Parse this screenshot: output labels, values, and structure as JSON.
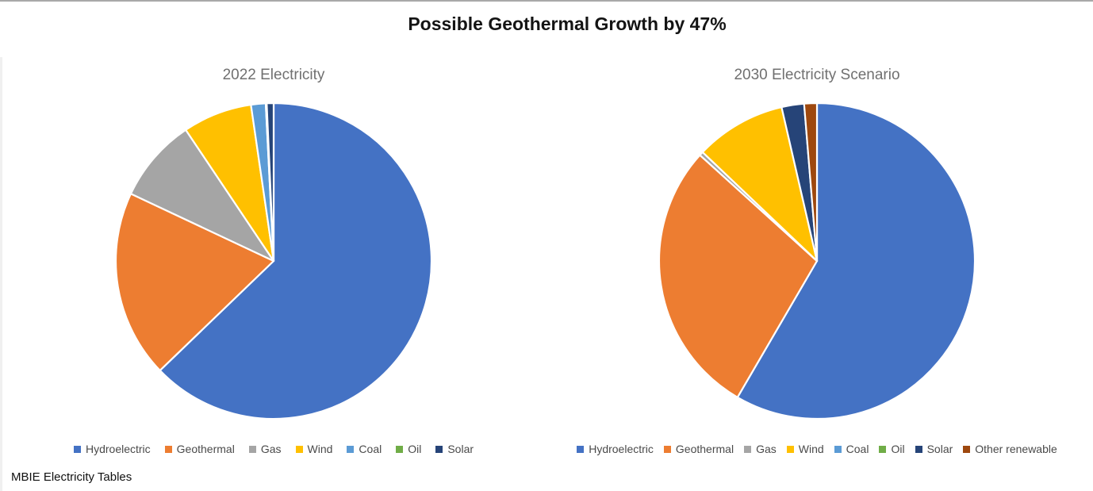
{
  "page": {
    "title": "Possible Geothermal Growth by 47%",
    "source_note": "MBIE Electricity Tables"
  },
  "chart_data": [
    {
      "type": "pie",
      "title": "2022 Electricity",
      "categories": [
        "Hydroelectric",
        "Geothermal",
        "Gas",
        "Wind",
        "Coal",
        "Oil",
        "Solar"
      ],
      "values": [
        62.8,
        19.2,
        8.6,
        7.1,
        1.5,
        0.1,
        0.7
      ],
      "colors": [
        "#4472C4",
        "#ED7D31",
        "#A5A5A5",
        "#FFC000",
        "#5B9BD5",
        "#70AD47",
        "#264478"
      ],
      "unit": "percent of generation",
      "start_angle_deg": 0,
      "direction": "clockwise",
      "legend_position": "bottom"
    },
    {
      "type": "pie",
      "title": "2030 Electricity Scenario",
      "categories": [
        "Hydroelectric",
        "Geothermal",
        "Gas",
        "Wind",
        "Coal",
        "Oil",
        "Solar",
        "Other renewable"
      ],
      "values": [
        58.4,
        28.3,
        0.4,
        9.3,
        0,
        0,
        2.3,
        1.3
      ],
      "colors": [
        "#4472C4",
        "#ED7D31",
        "#A5A5A5",
        "#FFC000",
        "#5B9BD5",
        "#70AD47",
        "#264478",
        "#9E480E"
      ],
      "unit": "percent of generation",
      "start_angle_deg": 0,
      "direction": "clockwise",
      "legend_position": "bottom"
    }
  ]
}
